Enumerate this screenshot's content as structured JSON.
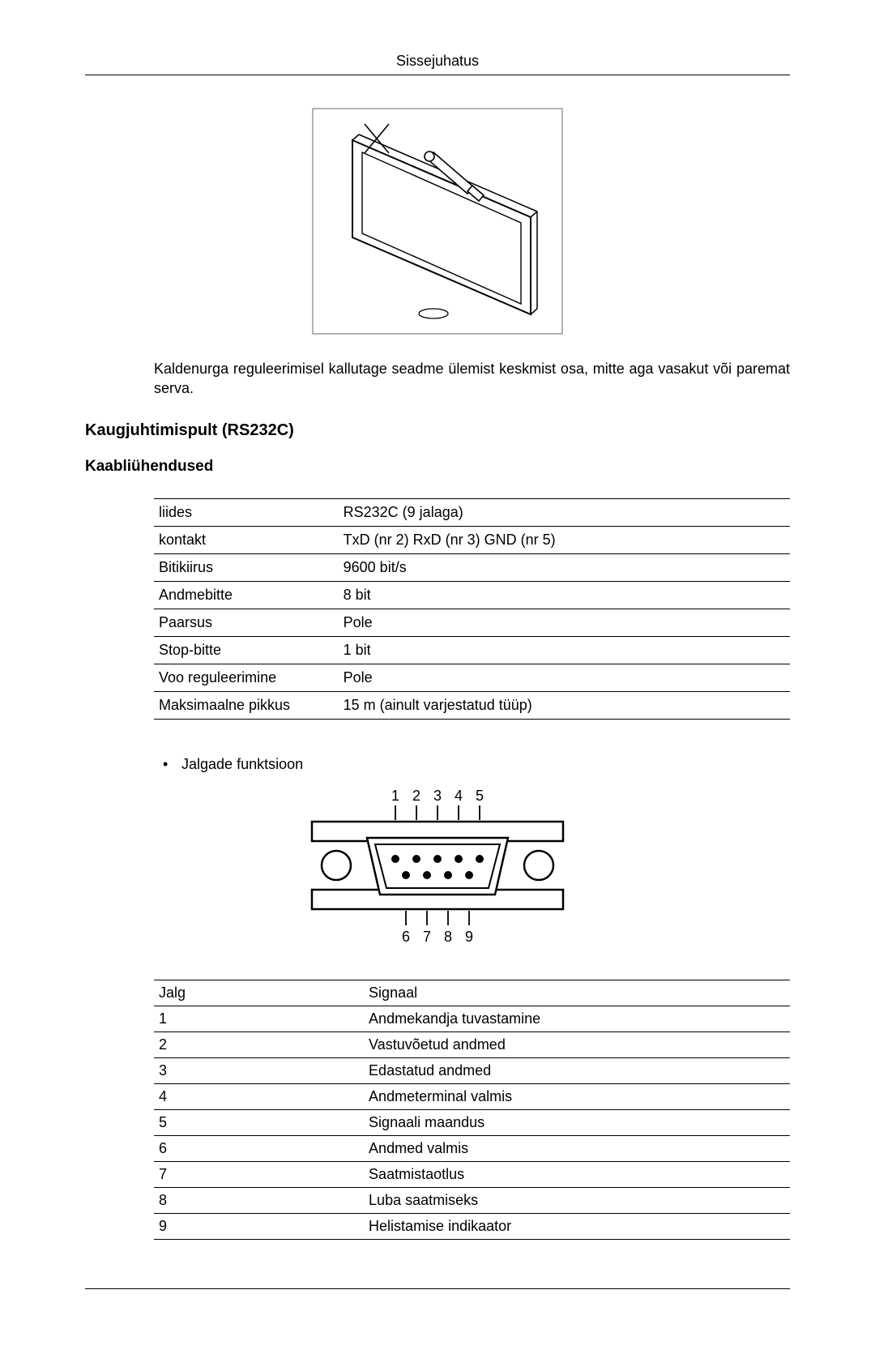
{
  "header": {
    "title": "Sissejuhatus"
  },
  "figure1": {
    "stroke": "#000000",
    "fill": "#ffffff",
    "hatch_stroke": "#000000"
  },
  "paragraph1": "Kaldenurga reguleerimisel kallutage seadme ülemist keskmist osa, mitte aga vasakut või paremat serva.",
  "section_heading": "Kaugjuhtimispult (RS232C)",
  "subsection_heading": "Kaabliühendused",
  "table1": {
    "rows": [
      {
        "label": "liides",
        "value": "RS232C (9 jalaga)"
      },
      {
        "label": "kontakt",
        "value": "TxD (nr 2) RxD (nr 3) GND (nr 5)"
      },
      {
        "label": "Bitikiirus",
        "value": "9600 bit/s"
      },
      {
        "label": "Andmebitte",
        "value": "8 bit"
      },
      {
        "label": "Paarsus",
        "value": "Pole"
      },
      {
        "label": "Stop-bitte",
        "value": "1 bit"
      },
      {
        "label": "Voo reguleerimine",
        "value": "Pole"
      },
      {
        "label": "Maksimaalne pikkus",
        "value": "15 m (ainult varjestatud tüüp)"
      }
    ]
  },
  "bullet": {
    "text": "Jalgade funktsioon"
  },
  "figure2": {
    "top_labels": [
      "1",
      "2",
      "3",
      "4",
      "5"
    ],
    "bottom_labels": [
      "6",
      "7",
      "8",
      "9"
    ],
    "stroke": "#000000",
    "fill": "#ffffff"
  },
  "table2": {
    "header": {
      "c1": "Jalg",
      "c2": "Signaal"
    },
    "rows": [
      {
        "pin": "1",
        "signal": "Andmekandja tuvastamine"
      },
      {
        "pin": "2",
        "signal": "Vastuvõetud andmed"
      },
      {
        "pin": "3",
        "signal": "Edastatud andmed"
      },
      {
        "pin": "4",
        "signal": "Andmeterminal valmis"
      },
      {
        "pin": "5",
        "signal": "Signaali maandus"
      },
      {
        "pin": "6",
        "signal": "Andmed valmis"
      },
      {
        "pin": "7",
        "signal": "Saatmistaotlus"
      },
      {
        "pin": "8",
        "signal": "Luba saatmiseks"
      },
      {
        "pin": "9",
        "signal": "Helistamise indikaator"
      }
    ]
  },
  "style": {
    "body_font_size_pt": 13,
    "heading_font_size_pt": 15,
    "text_color": "#000000",
    "background_color": "#ffffff",
    "rule_color": "#000000"
  }
}
